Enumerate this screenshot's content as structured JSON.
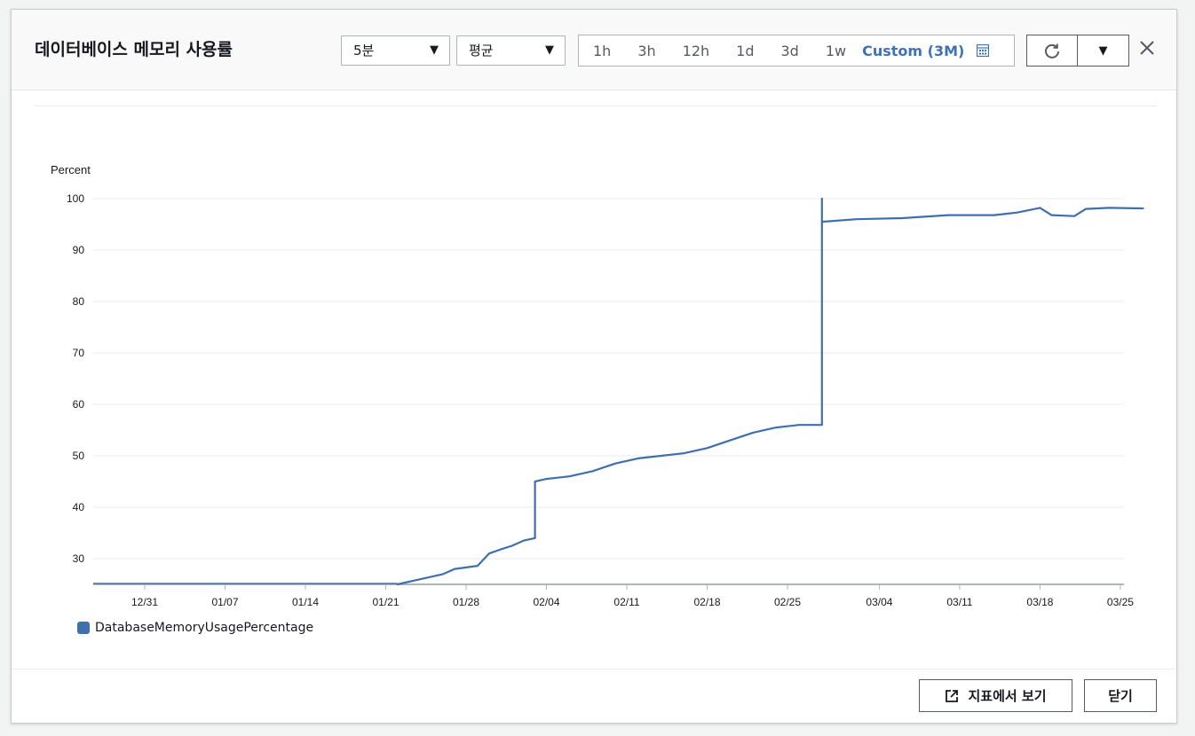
{
  "dialog": {
    "title": "데이터베이스 메모리 사용률",
    "period_select": "5분",
    "stat_select": "평균",
    "time_ranges": [
      "1h",
      "3h",
      "12h",
      "1d",
      "3d",
      "1w"
    ],
    "custom_range": "Custom (3M)",
    "footer": {
      "view_in_metrics_label": "지표에서 보기",
      "close_label": "닫기"
    }
  },
  "colors": {
    "series": "#3f6fae",
    "accent": "#3f72b5",
    "grid": "#eaeded"
  },
  "icons": {
    "period_caret": "caret-down-icon",
    "refresh": "refresh-icon",
    "more": "caret-down-icon",
    "close": "close-icon",
    "calendar": "calendar-icon",
    "external": "external-link-icon"
  },
  "chart_data": {
    "type": "line",
    "ylabel": "Percent",
    "ylim": [
      25,
      100
    ],
    "yticks": [
      30,
      40,
      50,
      60,
      70,
      80,
      90,
      100
    ],
    "xlabel": "",
    "xticks": [
      "12/31",
      "01/07",
      "01/14",
      "01/21",
      "01/28",
      "02/04",
      "02/11",
      "02/18",
      "02/25",
      "03/04",
      "03/11",
      "03/18",
      "03/25"
    ],
    "grid": true,
    "legend_position": "bottom-left",
    "series": [
      {
        "name": "DatabaseMemoryUsagePercentage",
        "points": [
          [
            "01/22",
            25.0
          ],
          [
            "01/24",
            26.0
          ],
          [
            "01/26",
            27.0
          ],
          [
            "01/27",
            28.0
          ],
          [
            "01/29",
            28.6
          ],
          [
            "01/30",
            31.0
          ],
          [
            "01/31",
            31.8
          ],
          [
            "02/01",
            32.5
          ],
          [
            "02/02",
            33.5
          ],
          [
            "02/03",
            34.0
          ],
          [
            "02/03",
            45.0
          ],
          [
            "02/04",
            45.5
          ],
          [
            "02/06",
            46.0
          ],
          [
            "02/08",
            47.0
          ],
          [
            "02/10",
            48.5
          ],
          [
            "02/12",
            49.5
          ],
          [
            "02/14",
            50.0
          ],
          [
            "02/16",
            50.5
          ],
          [
            "02/18",
            51.5
          ],
          [
            "02/20",
            53.0
          ],
          [
            "02/22",
            54.5
          ],
          [
            "02/24",
            55.5
          ],
          [
            "02/26",
            56.0
          ],
          [
            "02/28",
            56.0
          ],
          [
            "02/28",
            100.0
          ],
          [
            "02/28",
            95.5
          ],
          [
            "03/02",
            96.0
          ],
          [
            "03/06",
            96.2
          ],
          [
            "03/10",
            96.8
          ],
          [
            "03/14",
            96.8
          ],
          [
            "03/16",
            97.3
          ],
          [
            "03/18",
            98.2
          ],
          [
            "03/19",
            96.8
          ],
          [
            "03/21",
            96.6
          ],
          [
            "03/22",
            98.0
          ],
          [
            "03/24",
            98.2
          ],
          [
            "03/27",
            98.1
          ]
        ]
      }
    ]
  }
}
